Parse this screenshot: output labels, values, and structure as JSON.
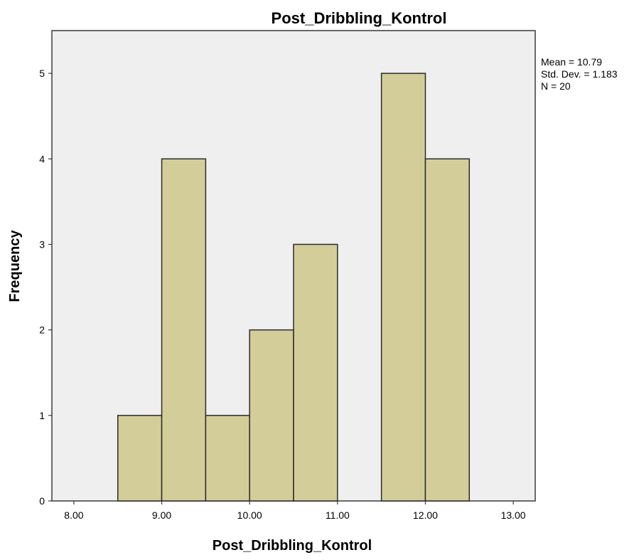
{
  "chart_data": {
    "type": "bar",
    "subtype": "histogram",
    "title": "Post_Dribbling_Kontrol",
    "xlabel": "Post_Dribbling_Kontrol",
    "ylabel": "Frequency",
    "xlim": [
      7.75,
      13.25
    ],
    "ylim": [
      0,
      5.5
    ],
    "x_ticks": [
      "8.00",
      "9.00",
      "10.00",
      "11.00",
      "12.00",
      "13.00"
    ],
    "x_tick_values": [
      8,
      9,
      10,
      11,
      12,
      13
    ],
    "y_ticks": [
      "0",
      "1",
      "2",
      "3",
      "4",
      "5"
    ],
    "y_tick_values": [
      0,
      1,
      2,
      3,
      4,
      5
    ],
    "bins": [
      {
        "start": 8.5,
        "end": 9.0,
        "frequency": 1
      },
      {
        "start": 9.0,
        "end": 9.5,
        "frequency": 4
      },
      {
        "start": 9.5,
        "end": 10.0,
        "frequency": 1
      },
      {
        "start": 10.0,
        "end": 10.5,
        "frequency": 2
      },
      {
        "start": 10.5,
        "end": 11.0,
        "frequency": 3
      },
      {
        "start": 11.0,
        "end": 11.5,
        "frequency": 0
      },
      {
        "start": 11.5,
        "end": 12.0,
        "frequency": 5
      },
      {
        "start": 12.0,
        "end": 12.5,
        "frequency": 4
      }
    ],
    "stats": [
      "Mean = 10.79",
      "Std. Dev. = 1.183",
      "N = 20"
    ],
    "grid": false,
    "legend": "none",
    "colors": {
      "bar_fill": "#d3cd9a",
      "bar_stroke": "#2b2b2b",
      "plot_background": "#efefef",
      "frame": "#3a3a3a"
    }
  }
}
